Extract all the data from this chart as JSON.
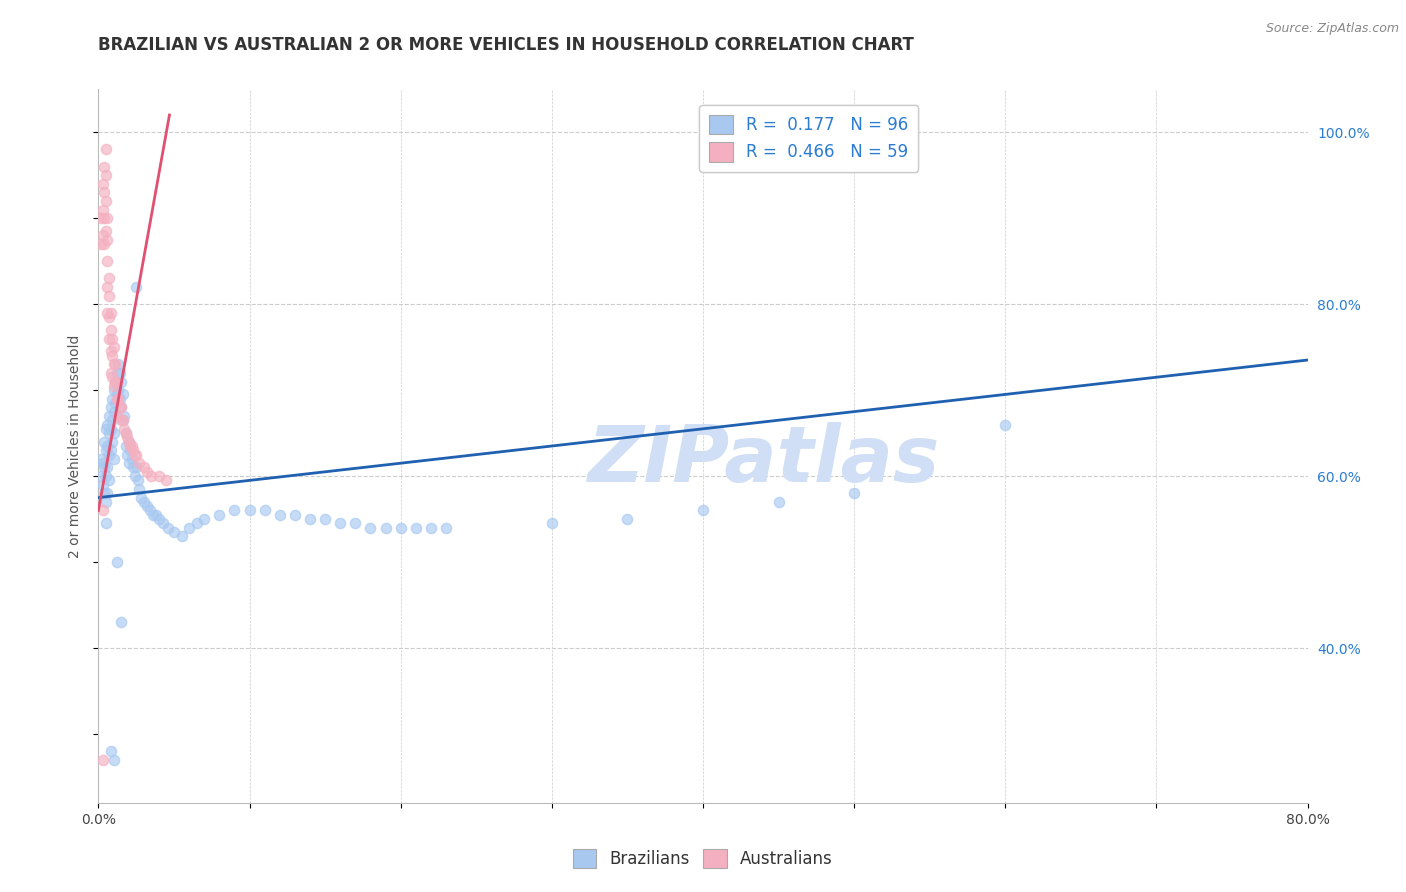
{
  "title": "BRAZILIAN VS AUSTRALIAN 2 OR MORE VEHICLES IN HOUSEHOLD CORRELATION CHART",
  "source_text": "Source: ZipAtlas.com",
  "ylabel": "2 or more Vehicles in Household",
  "xlim": [
    0.0,
    0.8
  ],
  "ylim": [
    0.22,
    1.05
  ],
  "xticks": [
    0.0,
    0.1,
    0.2,
    0.3,
    0.4,
    0.5,
    0.6,
    0.7,
    0.8
  ],
  "xticklabels": [
    "0.0%",
    "",
    "",
    "",
    "",
    "",
    "",
    "",
    "80.0%"
  ],
  "yticks_right": [
    0.4,
    0.6,
    0.8,
    1.0
  ],
  "ytick_right_labels": [
    "40.0%",
    "60.0%",
    "80.0%",
    "100.0%"
  ],
  "blue_color": "#A8C8F0",
  "pink_color": "#F4B0C0",
  "blue_line_color": "#2060B0",
  "pink_line_color": "#E05070",
  "watermark_color": "#D0DFF5",
  "legend_R_color": "#2B7CD3",
  "R_blue": 0.177,
  "N_blue": 96,
  "R_pink": 0.466,
  "N_pink": 59,
  "blue_x": [
    0.002,
    0.002,
    0.003,
    0.003,
    0.004,
    0.004,
    0.004,
    0.005,
    0.005,
    0.005,
    0.005,
    0.005,
    0.006,
    0.006,
    0.006,
    0.006,
    0.007,
    0.007,
    0.007,
    0.007,
    0.008,
    0.008,
    0.008,
    0.009,
    0.009,
    0.009,
    0.01,
    0.01,
    0.01,
    0.01,
    0.011,
    0.011,
    0.012,
    0.012,
    0.013,
    0.013,
    0.014,
    0.014,
    0.015,
    0.015,
    0.016,
    0.016,
    0.017,
    0.018,
    0.018,
    0.019,
    0.02,
    0.02,
    0.021,
    0.022,
    0.023,
    0.024,
    0.025,
    0.026,
    0.027,
    0.028,
    0.03,
    0.032,
    0.034,
    0.036,
    0.038,
    0.04,
    0.043,
    0.046,
    0.05,
    0.055,
    0.06,
    0.065,
    0.07,
    0.08,
    0.09,
    0.1,
    0.11,
    0.12,
    0.13,
    0.14,
    0.15,
    0.16,
    0.17,
    0.18,
    0.19,
    0.2,
    0.21,
    0.22,
    0.23,
    0.3,
    0.35,
    0.4,
    0.45,
    0.5,
    0.008,
    0.01,
    0.015,
    0.6,
    0.012,
    0.025
  ],
  "blue_y": [
    0.62,
    0.6,
    0.615,
    0.59,
    0.64,
    0.61,
    0.58,
    0.655,
    0.63,
    0.6,
    0.57,
    0.545,
    0.66,
    0.635,
    0.61,
    0.58,
    0.67,
    0.65,
    0.625,
    0.595,
    0.68,
    0.655,
    0.63,
    0.69,
    0.665,
    0.64,
    0.7,
    0.675,
    0.65,
    0.62,
    0.71,
    0.685,
    0.72,
    0.695,
    0.73,
    0.7,
    0.72,
    0.69,
    0.71,
    0.68,
    0.695,
    0.665,
    0.67,
    0.65,
    0.635,
    0.625,
    0.64,
    0.615,
    0.63,
    0.62,
    0.61,
    0.6,
    0.61,
    0.595,
    0.585,
    0.575,
    0.57,
    0.565,
    0.56,
    0.555,
    0.555,
    0.55,
    0.545,
    0.54,
    0.535,
    0.53,
    0.54,
    0.545,
    0.55,
    0.555,
    0.56,
    0.56,
    0.56,
    0.555,
    0.555,
    0.55,
    0.55,
    0.545,
    0.545,
    0.54,
    0.54,
    0.54,
    0.54,
    0.54,
    0.54,
    0.545,
    0.55,
    0.56,
    0.57,
    0.58,
    0.28,
    0.27,
    0.43,
    0.66,
    0.5,
    0.82
  ],
  "pink_x": [
    0.002,
    0.002,
    0.003,
    0.003,
    0.003,
    0.004,
    0.004,
    0.004,
    0.004,
    0.005,
    0.005,
    0.005,
    0.005,
    0.006,
    0.006,
    0.006,
    0.006,
    0.006,
    0.007,
    0.007,
    0.007,
    0.007,
    0.008,
    0.008,
    0.008,
    0.008,
    0.009,
    0.009,
    0.009,
    0.01,
    0.01,
    0.01,
    0.011,
    0.011,
    0.012,
    0.012,
    0.013,
    0.013,
    0.014,
    0.015,
    0.015,
    0.016,
    0.017,
    0.018,
    0.019,
    0.02,
    0.021,
    0.022,
    0.023,
    0.024,
    0.025,
    0.027,
    0.03,
    0.032,
    0.035,
    0.04,
    0.045,
    0.003,
    0.003
  ],
  "pink_y": [
    0.9,
    0.87,
    0.94,
    0.91,
    0.88,
    0.96,
    0.93,
    0.9,
    0.87,
    0.98,
    0.95,
    0.92,
    0.885,
    0.9,
    0.875,
    0.85,
    0.82,
    0.79,
    0.83,
    0.81,
    0.785,
    0.76,
    0.79,
    0.77,
    0.745,
    0.72,
    0.76,
    0.74,
    0.715,
    0.75,
    0.73,
    0.705,
    0.73,
    0.71,
    0.71,
    0.69,
    0.69,
    0.67,
    0.68,
    0.68,
    0.665,
    0.665,
    0.655,
    0.65,
    0.645,
    0.64,
    0.635,
    0.635,
    0.63,
    0.625,
    0.625,
    0.615,
    0.61,
    0.605,
    0.6,
    0.6,
    0.595,
    0.56,
    0.27
  ],
  "blue_trend_x": [
    0.0,
    0.8
  ],
  "blue_trend_y": [
    0.575,
    0.735
  ],
  "pink_trend_x": [
    0.0,
    0.047
  ],
  "pink_trend_y": [
    0.56,
    1.02
  ],
  "background_color": "#FFFFFF",
  "grid_color": "#CCCCCC",
  "title_fontsize": 12,
  "axis_label_fontsize": 10,
  "tick_fontsize": 10,
  "legend_fontsize": 12,
  "dot_size": 55,
  "dot_alpha": 0.65
}
